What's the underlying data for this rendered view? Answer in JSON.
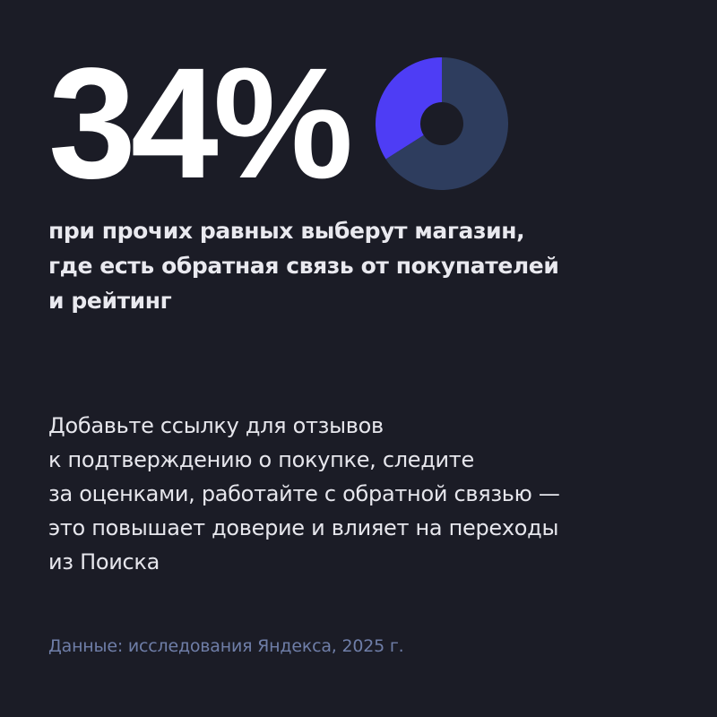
{
  "big_stat": "34%",
  "headline_lines": [
    "при прочих равных выберут магазин,",
    "где есть обратная связь от покупателей",
    "и рейтинг"
  ],
  "advice_lines": [
    "Добавьте ссылку для отзывов",
    "к подтверждению о покупке, следите",
    "за оценками, работайте с обратной связью —",
    "это повышает доверие и влияет на переходы",
    "из Поиска"
  ],
  "source": "Данные: исследования Яндекса, 2025 г.",
  "colors": {
    "background": "#1b1c26",
    "highlight": "#4e3df5",
    "remainder": "#2e3d5e",
    "source_text": "#6f7ea8"
  },
  "chart_data": {
    "type": "pie",
    "variant": "donut",
    "title": "",
    "categories": [
      "",
      ""
    ],
    "values": [
      34,
      66
    ],
    "colors": [
      "#4e3df5",
      "#2e3d5e"
    ]
  }
}
